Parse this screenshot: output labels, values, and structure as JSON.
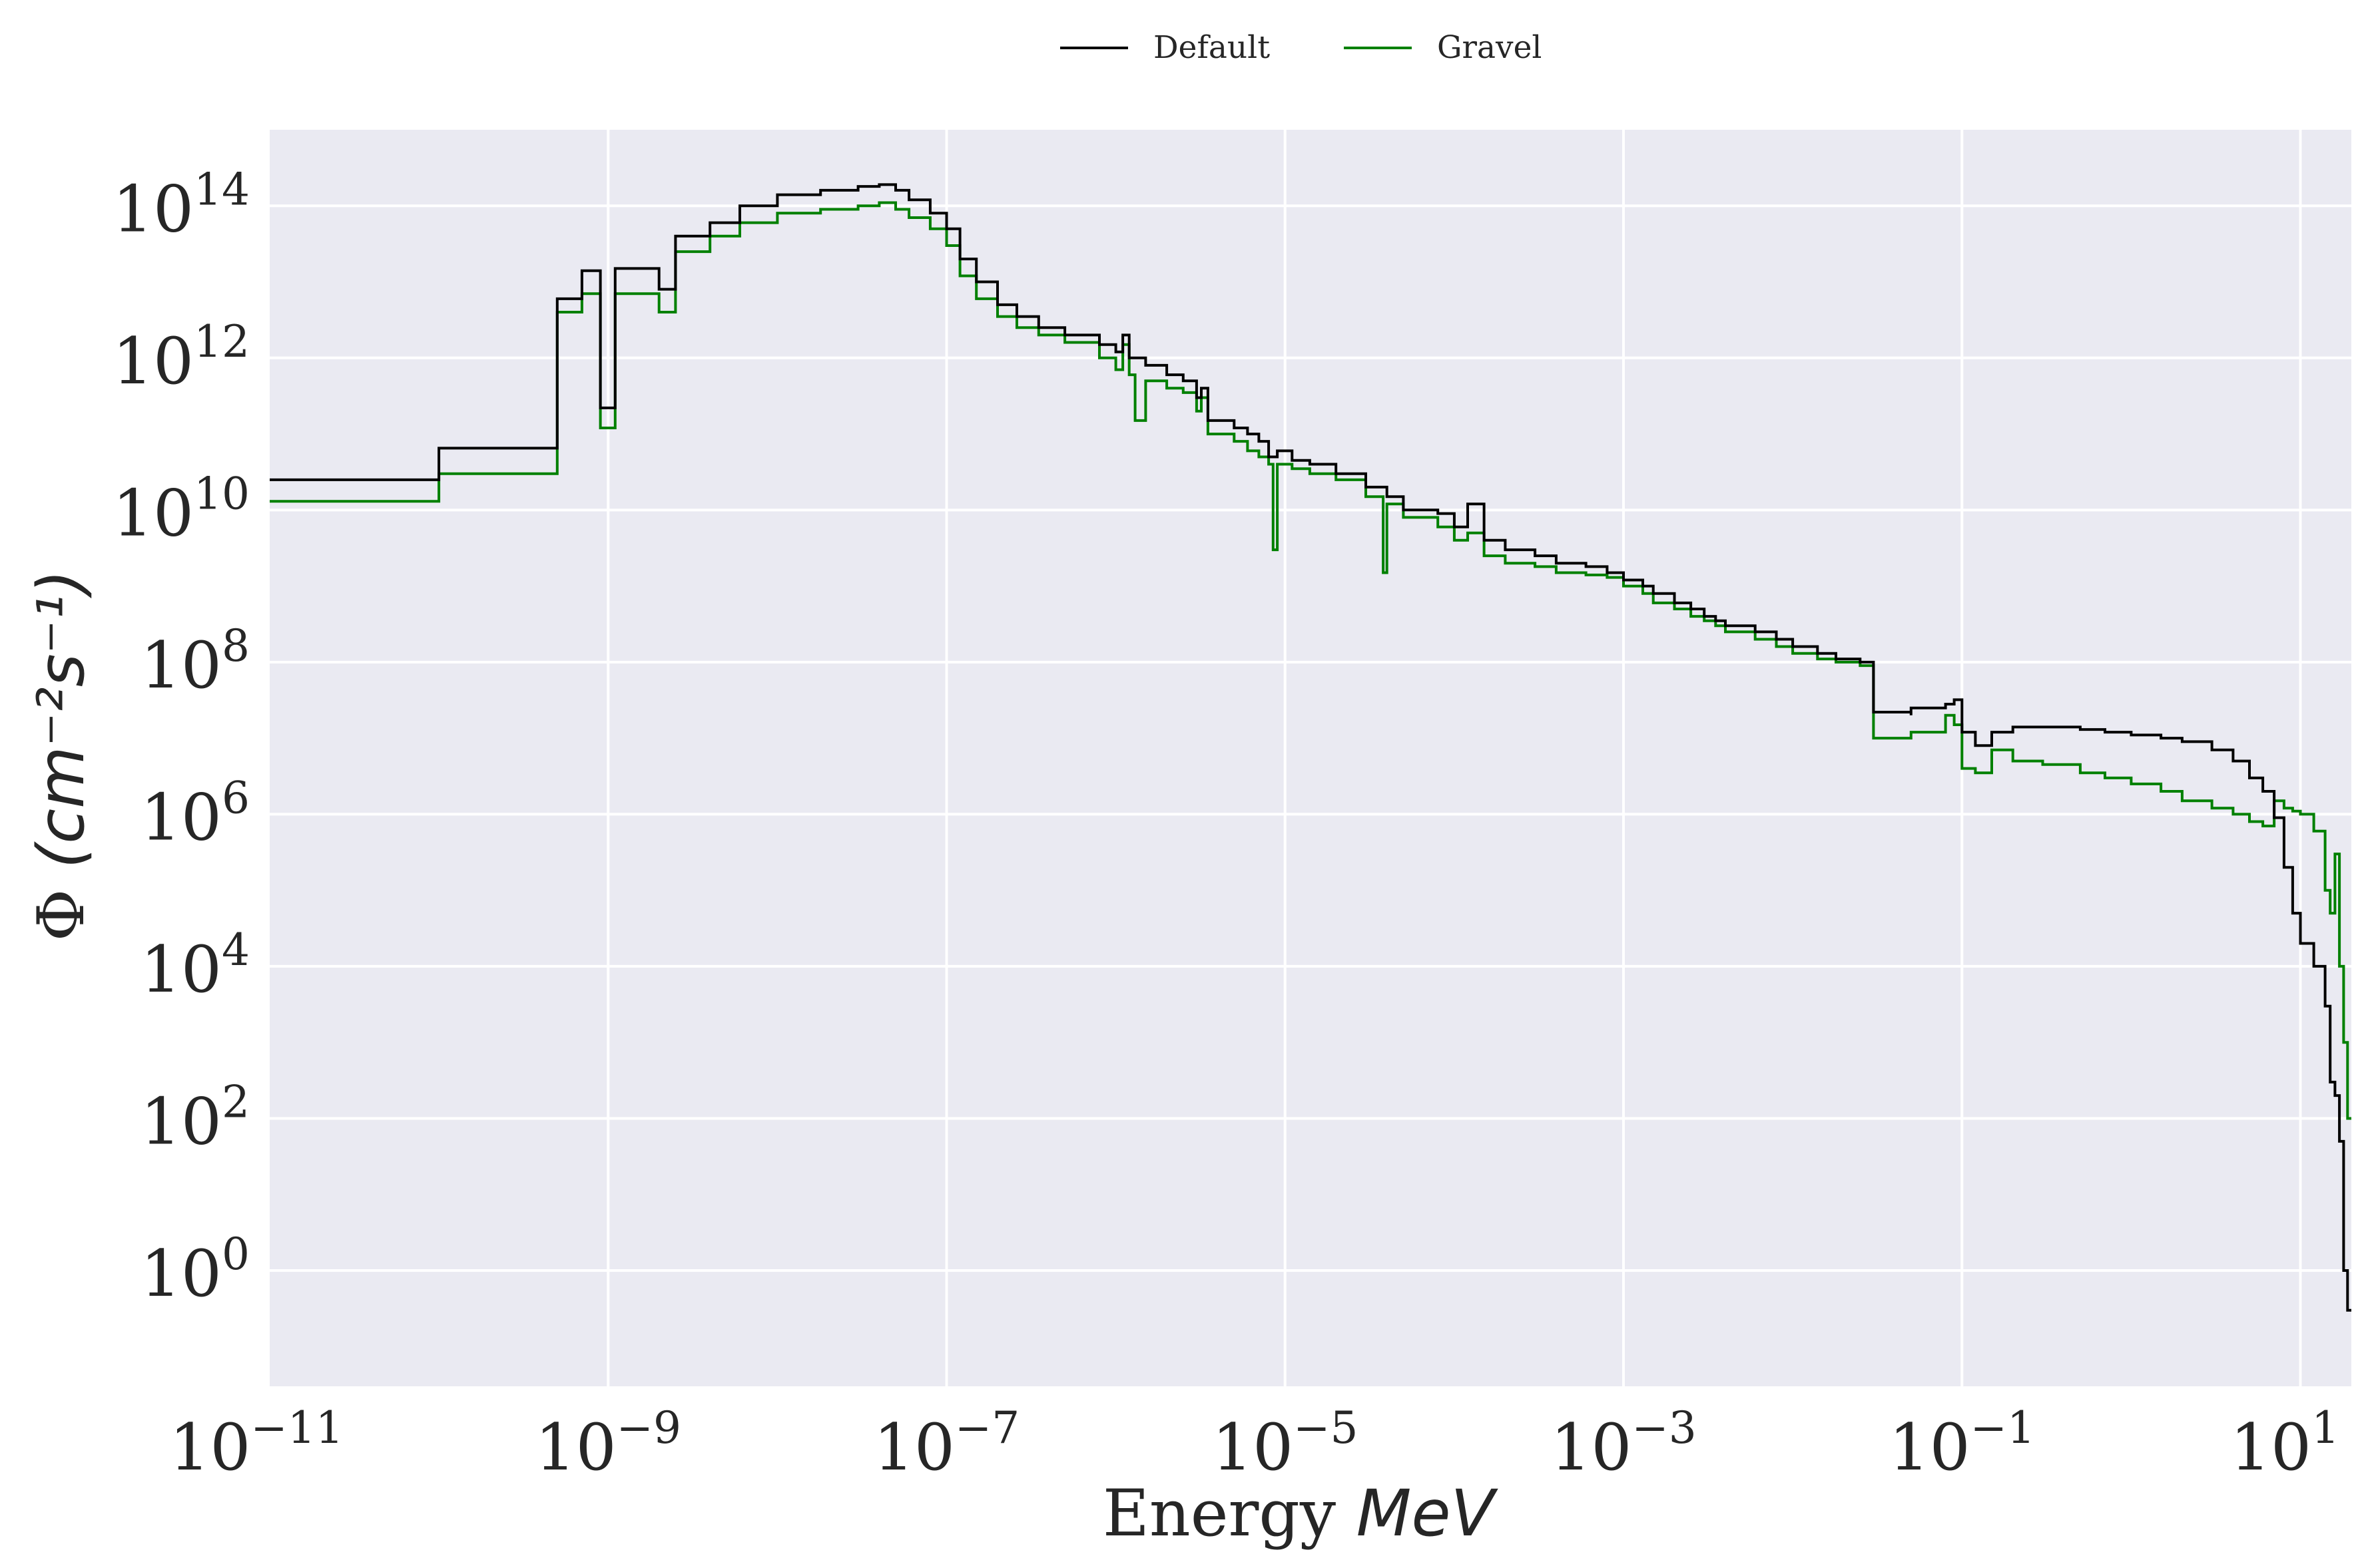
{
  "chart_data": {
    "type": "line",
    "step": true,
    "title": "",
    "xscale": "log",
    "yscale": "log",
    "xlim": [
      1e-11,
      20
    ],
    "ylim": [
      0.03,
      1000000000000000.0
    ],
    "grid": true,
    "background_color": "#EAEAF2",
    "legend_position": "top-center",
    "xlabel": {
      "text": "Energy",
      "math": "MeV"
    },
    "ylabel": {
      "symbol": "Φ",
      "math": "(cm⁻²s⁻¹)"
    },
    "xticks": [
      {
        "base": "10",
        "exp": "−11",
        "value": 1e-11
      },
      {
        "base": "10",
        "exp": "−9",
        "value": 1e-09
      },
      {
        "base": "10",
        "exp": "−7",
        "value": 1e-07
      },
      {
        "base": "10",
        "exp": "−5",
        "value": 1e-05
      },
      {
        "base": "10",
        "exp": "−3",
        "value": 0.001
      },
      {
        "base": "10",
        "exp": "−1",
        "value": 0.1
      },
      {
        "base": "10",
        "exp": "1",
        "value": 10
      }
    ],
    "yticks": [
      {
        "base": "10",
        "exp": "14",
        "value": 100000000000000.0
      },
      {
        "base": "10",
        "exp": "12",
        "value": 1000000000000.0
      },
      {
        "base": "10",
        "exp": "10",
        "value": 10000000000.0
      },
      {
        "base": "10",
        "exp": "8",
        "value": 100000000.0
      },
      {
        "base": "10",
        "exp": "6",
        "value": 1000000.0
      },
      {
        "base": "10",
        "exp": "4",
        "value": 10000.0
      },
      {
        "base": "10",
        "exp": "2",
        "value": 100.0
      },
      {
        "base": "10",
        "exp": "0",
        "value": 1
      }
    ],
    "series": [
      {
        "name": "Default",
        "color": "#000000",
        "points": [
          [
            1e-11,
            25000000000.0
          ],
          [
            1e-10,
            25000000000.0
          ],
          [
            1e-10,
            65000000000.0
          ],
          [
            5e-10,
            65000000000.0
          ],
          [
            5e-10,
            6000000000000.0
          ],
          [
            7e-10,
            6000000000000.0
          ],
          [
            7e-10,
            14000000000000.0
          ],
          [
            9e-10,
            14000000000000.0
          ],
          [
            9e-10,
            220000000000.0
          ],
          [
            1.1e-09,
            220000000000.0
          ],
          [
            1.1e-09,
            15000000000000.0
          ],
          [
            2e-09,
            15000000000000.0
          ],
          [
            2e-09,
            8000000000000.0
          ],
          [
            2.5e-09,
            8000000000000.0
          ],
          [
            2.5e-09,
            40000000000000.0
          ],
          [
            4e-09,
            40000000000000.0
          ],
          [
            4e-09,
            60000000000000.0
          ],
          [
            6e-09,
            60000000000000.0
          ],
          [
            6e-09,
            100000000000000.0
          ],
          [
            1e-08,
            100000000000000.0
          ],
          [
            1e-08,
            140000000000000.0
          ],
          [
            1.8e-08,
            140000000000000.0
          ],
          [
            1.8e-08,
            160000000000000.0
          ],
          [
            3e-08,
            160000000000000.0
          ],
          [
            3e-08,
            180000000000000.0
          ],
          [
            4e-08,
            180000000000000.0
          ],
          [
            4e-08,
            190000000000000.0
          ],
          [
            5e-08,
            190000000000000.0
          ],
          [
            5e-08,
            160000000000000.0
          ],
          [
            6e-08,
            160000000000000.0
          ],
          [
            6e-08,
            120000000000000.0
          ],
          [
            8e-08,
            120000000000000.0
          ],
          [
            8e-08,
            80000000000000.0
          ],
          [
            1e-07,
            80000000000000.0
          ],
          [
            1e-07,
            50000000000000.0
          ],
          [
            1.2e-07,
            50000000000000.0
          ],
          [
            1.2e-07,
            20000000000000.0
          ],
          [
            1.5e-07,
            20000000000000.0
          ],
          [
            1.5e-07,
            10000000000000.0
          ],
          [
            2e-07,
            10000000000000.0
          ],
          [
            2e-07,
            5000000000000.0
          ],
          [
            2.6e-07,
            5000000000000.0
          ],
          [
            2.6e-07,
            3500000000000.0
          ],
          [
            3.5e-07,
            3500000000000.0
          ],
          [
            3.5e-07,
            2500000000000.0
          ],
          [
            5e-07,
            2500000000000.0
          ],
          [
            5e-07,
            2000000000000.0
          ],
          [
            8e-07,
            2000000000000.0
          ],
          [
            8e-07,
            1500000000000.0
          ],
          [
            1e-06,
            1200000000000.0
          ],
          [
            1.1e-06,
            2000000000000.0
          ],
          [
            1.2e-06,
            1000000000000.0
          ],
          [
            1.5e-06,
            800000000000.0
          ],
          [
            2e-06,
            600000000000.0
          ],
          [
            2.5e-06,
            500000000000.0
          ],
          [
            3e-06,
            300000000000.0
          ],
          [
            3.2e-06,
            400000000000.0
          ],
          [
            3.5e-06,
            150000000000.0
          ],
          [
            5e-06,
            120000000000.0
          ],
          [
            6e-06,
            100000000000.0
          ],
          [
            7e-06,
            80000000000.0
          ],
          [
            8e-06,
            50000000000.0
          ],
          [
            9e-06,
            60000000000.0
          ],
          [
            1.1e-05,
            45000000000.0
          ],
          [
            1.4e-05,
            40000000000.0
          ],
          [
            2e-05,
            30000000000.0
          ],
          [
            3e-05,
            20000000000.0
          ],
          [
            4e-05,
            15000000000.0
          ],
          [
            5e-05,
            10000000000.0
          ],
          [
            8e-05,
            9000000000.0
          ],
          [
            0.0001,
            6000000000.0
          ],
          [
            0.00012,
            12000000000.0
          ],
          [
            0.00015,
            4000000000.0
          ],
          [
            0.0002,
            3000000000.0
          ],
          [
            0.0003,
            2500000000.0
          ],
          [
            0.0004,
            2000000000.0
          ],
          [
            0.0006,
            1800000000.0
          ],
          [
            0.0008,
            1500000000.0
          ],
          [
            0.001,
            1200000000.0
          ],
          [
            0.0013,
            1000000000.0
          ],
          [
            0.0015,
            800000000.0
          ],
          [
            0.002,
            600000000.0
          ],
          [
            0.0025,
            500000000.0
          ],
          [
            0.003,
            400000000.0
          ],
          [
            0.0035,
            350000000.0
          ],
          [
            0.004,
            300000000.0
          ],
          [
            0.006,
            250000000.0
          ],
          [
            0.008,
            200000000.0
          ],
          [
            0.01,
            160000000.0
          ],
          [
            0.014,
            130000000.0
          ],
          [
            0.018,
            110000000.0
          ],
          [
            0.025,
            100000000.0
          ],
          [
            0.03,
            100000000.0
          ],
          [
            0.03,
            22000000.0
          ],
          [
            0.05,
            20000000.0
          ],
          [
            0.05,
            25000000.0
          ],
          [
            0.08,
            28000000.0
          ],
          [
            0.09,
            32000000.0
          ],
          [
            0.1,
            12000000.0
          ],
          [
            0.12,
            8000000.0
          ],
          [
            0.15,
            12000000.0
          ],
          [
            0.2,
            14000000.0
          ],
          [
            0.3,
            14000000.0
          ],
          [
            0.5,
            13000000.0
          ],
          [
            0.7,
            12000000.0
          ],
          [
            1,
            11000000.0
          ],
          [
            1.5,
            10000000.0
          ],
          [
            2,
            9000000.0
          ],
          [
            3,
            7000000.0
          ],
          [
            4,
            5000000.0
          ],
          [
            5,
            3000000.0
          ],
          [
            6,
            2000000.0
          ],
          [
            7,
            900000.0
          ],
          [
            8,
            200000.0
          ],
          [
            9,
            50000.0
          ],
          [
            10,
            20000.0
          ],
          [
            12,
            10000.0
          ],
          [
            14,
            3000.0
          ],
          [
            15,
            300.0
          ],
          [
            16,
            200.0
          ],
          [
            17,
            50.0
          ],
          [
            18,
            1
          ],
          [
            19,
            0.3
          ],
          [
            20,
            0.3
          ]
        ]
      },
      {
        "name": "Gravel",
        "color": "#008000",
        "points": [
          [
            1e-11,
            13000000000.0
          ],
          [
            1e-10,
            13000000000.0
          ],
          [
            1e-10,
            30000000000.0
          ],
          [
            5e-10,
            30000000000.0
          ],
          [
            5e-10,
            4000000000000.0
          ],
          [
            7e-10,
            4000000000000.0
          ],
          [
            7e-10,
            7000000000000.0
          ],
          [
            9e-10,
            7000000000000.0
          ],
          [
            9e-10,
            120000000000.0
          ],
          [
            1.1e-09,
            120000000000.0
          ],
          [
            1.1e-09,
            7000000000000.0
          ],
          [
            2e-09,
            7000000000000.0
          ],
          [
            2e-09,
            4000000000000.0
          ],
          [
            2.5e-09,
            4000000000000.0
          ],
          [
            2.5e-09,
            25000000000000.0
          ],
          [
            4e-09,
            25000000000000.0
          ],
          [
            4e-09,
            40000000000000.0
          ],
          [
            6e-09,
            40000000000000.0
          ],
          [
            6e-09,
            60000000000000.0
          ],
          [
            1e-08,
            60000000000000.0
          ],
          [
            1e-08,
            80000000000000.0
          ],
          [
            1.8e-08,
            80000000000000.0
          ],
          [
            1.8e-08,
            90000000000000.0
          ],
          [
            3e-08,
            90000000000000.0
          ],
          [
            3e-08,
            100000000000000.0
          ],
          [
            4e-08,
            100000000000000.0
          ],
          [
            4e-08,
            110000000000000.0
          ],
          [
            5e-08,
            110000000000000.0
          ],
          [
            5e-08,
            90000000000000.0
          ],
          [
            6e-08,
            90000000000000.0
          ],
          [
            6e-08,
            70000000000000.0
          ],
          [
            8e-08,
            70000000000000.0
          ],
          [
            8e-08,
            50000000000000.0
          ],
          [
            1e-07,
            50000000000000.0
          ],
          [
            1e-07,
            30000000000000.0
          ],
          [
            1.2e-07,
            30000000000000.0
          ],
          [
            1.2e-07,
            12000000000000.0
          ],
          [
            1.5e-07,
            12000000000000.0
          ],
          [
            1.5e-07,
            6000000000000.0
          ],
          [
            2e-07,
            6000000000000.0
          ],
          [
            2e-07,
            3500000000000.0
          ],
          [
            2.6e-07,
            3500000000000.0
          ],
          [
            2.6e-07,
            2500000000000.0
          ],
          [
            3.5e-07,
            2500000000000.0
          ],
          [
            3.5e-07,
            2000000000000.0
          ],
          [
            5e-07,
            2000000000000.0
          ],
          [
            5e-07,
            1600000000000.0
          ],
          [
            8e-07,
            1600000000000.0
          ],
          [
            8e-07,
            1000000000000.0
          ],
          [
            1e-06,
            700000000000.0
          ],
          [
            1.1e-06,
            1500000000000.0
          ],
          [
            1.2e-06,
            600000000000.0
          ],
          [
            1.3e-06,
            150000000000.0
          ],
          [
            1.5e-06,
            500000000000.0
          ],
          [
            2e-06,
            400000000000.0
          ],
          [
            2.5e-06,
            350000000000.0
          ],
          [
            3e-06,
            200000000000.0
          ],
          [
            3.2e-06,
            300000000000.0
          ],
          [
            3.5e-06,
            100000000000.0
          ],
          [
            5e-06,
            80000000000.0
          ],
          [
            6e-06,
            60000000000.0
          ],
          [
            7e-06,
            50000000000.0
          ],
          [
            8e-06,
            40000000000.0
          ],
          [
            8.5e-06,
            3000000000.0
          ],
          [
            9e-06,
            40000000000.0
          ],
          [
            1.1e-05,
            35000000000.0
          ],
          [
            1.4e-05,
            30000000000.0
          ],
          [
            2e-05,
            25000000000.0
          ],
          [
            3e-05,
            15000000000.0
          ],
          [
            3.8e-05,
            1500000000.0
          ],
          [
            4e-05,
            12000000000.0
          ],
          [
            5e-05,
            8000000000.0
          ],
          [
            8e-05,
            6000000000.0
          ],
          [
            0.0001,
            4000000000.0
          ],
          [
            0.00012,
            5000000000.0
          ],
          [
            0.00015,
            2500000000.0
          ],
          [
            0.0002,
            2000000000.0
          ],
          [
            0.0003,
            1800000000.0
          ],
          [
            0.0004,
            1500000000.0
          ],
          [
            0.0006,
            1400000000.0
          ],
          [
            0.0008,
            1300000000.0
          ],
          [
            0.001,
            1000000000.0
          ],
          [
            0.0013,
            800000000.0
          ],
          [
            0.0015,
            600000000.0
          ],
          [
            0.002,
            500000000.0
          ],
          [
            0.0025,
            400000000.0
          ],
          [
            0.003,
            350000000.0
          ],
          [
            0.0035,
            300000000.0
          ],
          [
            0.004,
            250000000.0
          ],
          [
            0.006,
            200000000.0
          ],
          [
            0.008,
            160000000.0
          ],
          [
            0.01,
            130000000.0
          ],
          [
            0.014,
            110000000.0
          ],
          [
            0.018,
            100000000.0
          ],
          [
            0.025,
            90000000.0
          ],
          [
            0.03,
            90000000.0
          ],
          [
            0.03,
            10000000.0
          ],
          [
            0.05,
            10000000.0
          ],
          [
            0.05,
            12000000.0
          ],
          [
            0.08,
            20000000.0
          ],
          [
            0.09,
            15000000.0
          ],
          [
            0.1,
            4000000.0
          ],
          [
            0.12,
            3500000.0
          ],
          [
            0.15,
            7000000.0
          ],
          [
            0.2,
            5000000.0
          ],
          [
            0.3,
            4500000.0
          ],
          [
            0.5,
            3500000.0
          ],
          [
            0.7,
            3000000.0
          ],
          [
            1,
            2500000.0
          ],
          [
            1.5,
            2000000.0
          ],
          [
            2,
            1500000.0
          ],
          [
            3,
            1200000.0
          ],
          [
            4,
            1000000.0
          ],
          [
            5,
            800000.0
          ],
          [
            6,
            700000.0
          ],
          [
            7,
            1500000.0
          ],
          [
            8,
            1200000.0
          ],
          [
            9,
            1100000.0
          ],
          [
            10,
            1000000.0
          ],
          [
            12,
            600000.0
          ],
          [
            14,
            100000.0
          ],
          [
            15,
            50000.0
          ],
          [
            16,
            300000.0
          ],
          [
            17,
            10000.0
          ],
          [
            18,
            1000.0
          ],
          [
            19,
            100.0
          ],
          [
            20,
            100.0
          ]
        ]
      }
    ]
  }
}
